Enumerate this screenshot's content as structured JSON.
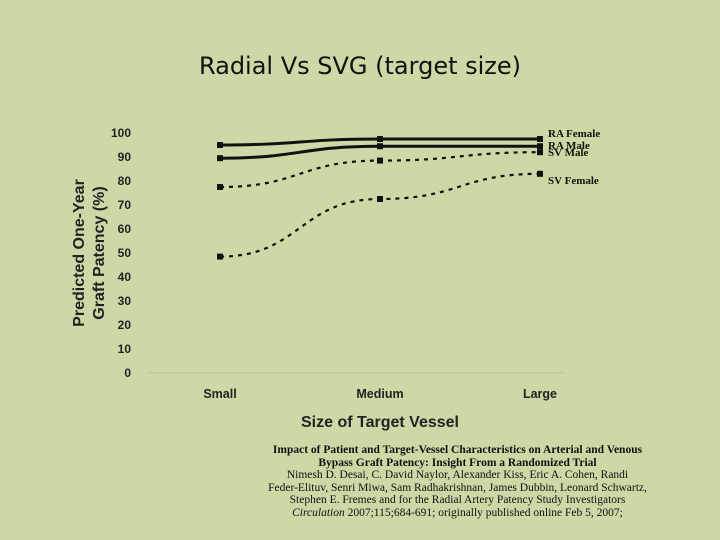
{
  "slide": {
    "title": "Radial Vs SVG (target size)"
  },
  "chart_data": {
    "type": "line",
    "ylabel_line1": "Predicted One-Year",
    "ylabel_line2": "Graft Patency (%)",
    "xlabel": "Size of Target Vessel",
    "categories": [
      "Small",
      "Medium",
      "Large"
    ],
    "ylim": [
      0,
      100
    ],
    "yticks": [
      0,
      10,
      20,
      30,
      40,
      50,
      60,
      70,
      80,
      90,
      100
    ],
    "grid": false,
    "legend": "right, labels at line ends",
    "series": [
      {
        "name": "RA Female",
        "values": [
          95,
          97.5,
          97.5
        ],
        "style": "solid"
      },
      {
        "name": "RA Male",
        "values": [
          89.5,
          94.5,
          94.5
        ],
        "style": "solid"
      },
      {
        "name": "SV Male",
        "values": [
          77.5,
          88.5,
          92
        ],
        "style": "dashed"
      },
      {
        "name": "SV Female",
        "values": [
          48.5,
          72.5,
          83
        ],
        "style": "dashed"
      }
    ],
    "line_color": "#111111"
  },
  "citation": {
    "title_line1": "Impact of Patient and Target-Vessel Characteristics on Arterial and Venous",
    "title_line2": "Bypass Graft Patency: Insight From a Randomized Trial",
    "authors_line1": "Nimesh D. Desai, C. David Naylor, Alexander Kiss, Eric A. Cohen, Randi",
    "authors_line2": "Feder-Elituv, Senri Miwa, Sam Radhakrishnan, James Dubbin, Leonard Schwartz,",
    "authors_line3": "Stephen E. Fremes and for the Radial Artery Patency Study Investigators",
    "journal": "Circulation",
    "journal_details": " 2007;115;684-691; originally published online Feb 5, 2007;"
  }
}
